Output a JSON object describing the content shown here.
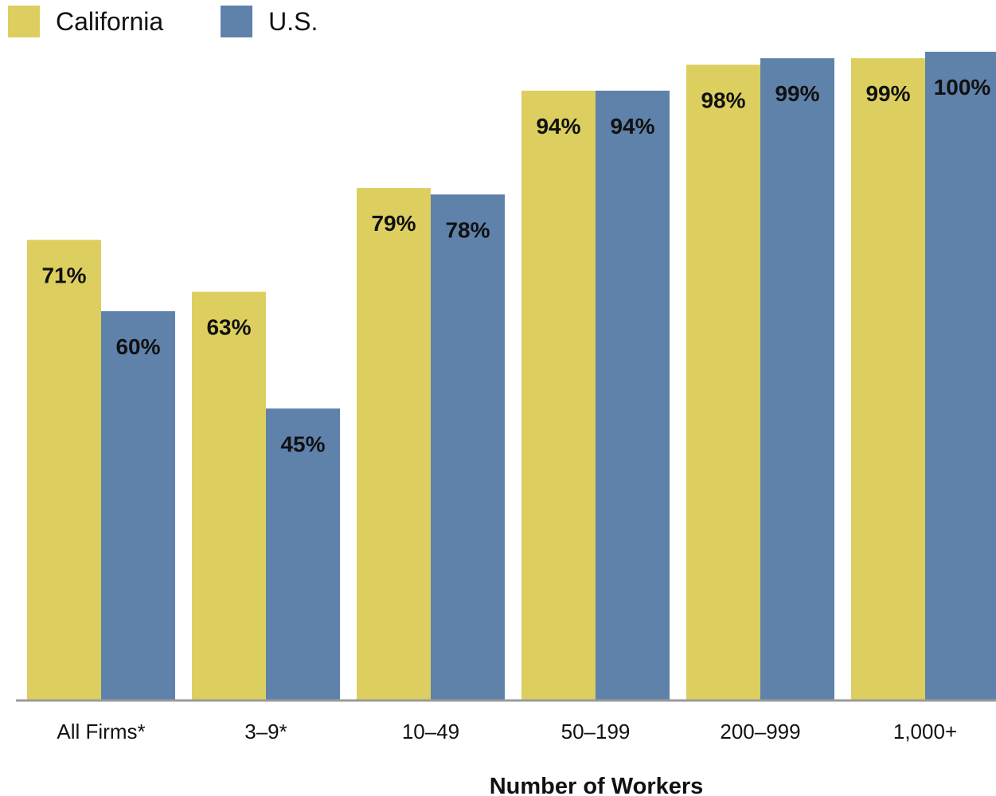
{
  "chart_data": {
    "type": "bar",
    "categories": [
      "All Firms*",
      "3–9*",
      "10–49",
      "50–199",
      "200–999",
      "1,000+"
    ],
    "series": [
      {
        "name": "California",
        "values": [
          71,
          63,
          79,
          94,
          98,
          99
        ],
        "value_labels": [
          "71%",
          "63%",
          "79%",
          "94%",
          "98%",
          "99%"
        ],
        "color": "#dccf5f"
      },
      {
        "name": "U.S.",
        "values": [
          60,
          45,
          78,
          94,
          99,
          100
        ],
        "value_labels": [
          "60%",
          "45%",
          "78%",
          "94%",
          "99%",
          "100%"
        ],
        "color": "#5f82ab"
      }
    ],
    "title": "",
    "xlabel": "Number of Workers",
    "ylabel": "",
    "ylim": [
      0,
      100
    ],
    "grid": false,
    "legend_position": "top-left"
  }
}
